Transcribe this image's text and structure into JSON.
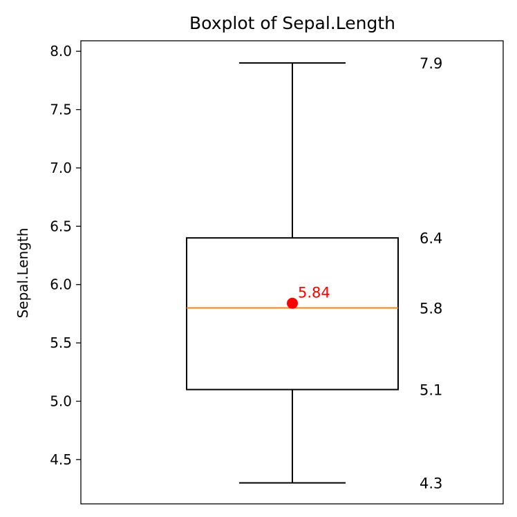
{
  "chart_data": {
    "type": "box",
    "title": "Boxplot of Sepal.Length",
    "ylabel": "Sepal.Length",
    "xlabel": "",
    "ylim": [
      4.12,
      8.09
    ],
    "yticks": [
      4.5,
      5.0,
      5.5,
      6.0,
      6.5,
      7.0,
      7.5,
      8.0
    ],
    "ytick_labels": [
      "4.5",
      "5.0",
      "5.5",
      "6.0",
      "6.5",
      "7.0",
      "7.5",
      "8.0"
    ],
    "box": {
      "min": 4.3,
      "q1": 5.1,
      "median": 5.8,
      "q3": 6.4,
      "max": 7.9,
      "mean": 5.84
    },
    "stat_labels": [
      "7.9",
      "6.4",
      "5.8",
      "5.1",
      "4.3"
    ],
    "mean_label": "5.84",
    "grid": false,
    "colors": {
      "box": "#000000",
      "median": "#ff7f0e",
      "mean": "#ff0000"
    }
  }
}
